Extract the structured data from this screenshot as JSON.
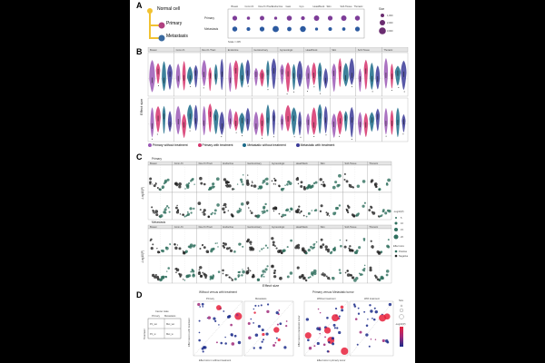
{
  "panels": {
    "a": "A",
    "b": "B",
    "c": "C",
    "d": "D"
  },
  "panel_a": {
    "nodes": [
      "Normal cell",
      "Primary",
      "Metastasis"
    ],
    "rows": [
      "Primary",
      "Metastasis"
    ],
    "columns": [
      "Breast",
      "Conn./O.",
      "Dev./O./Tract",
      "Endocrine",
      "Gast.",
      "Gyn.",
      "Head/Neck",
      "Skin",
      "Soft-Tissue",
      "Thoracic"
    ],
    "size_legend_title": "Size",
    "size_legend": [
      "1,000",
      "2,000",
      "3,000"
    ],
    "footnote": "Scale = 205"
  },
  "cancer_types": [
    "Breast",
    "Conn./O.",
    "Dev./O./Tract",
    "Endocrine",
    "Genitourinary",
    "Gynecologic",
    "Head/Neck",
    "Skin",
    "Soft-Tissue",
    "Thoracic"
  ],
  "panel_b": {
    "ylabel": "Effect size",
    "legend": [
      {
        "label": "Primary without treatment",
        "color": "#9b59b6"
      },
      {
        "label": "Primary with treatment",
        "color": "#d6336c"
      },
      {
        "label": "Metastatic without treatment",
        "color": "#1c6b8a"
      },
      {
        "label": "Metastatic with treatment",
        "color": "#3b3b98"
      }
    ]
  },
  "panel_c": {
    "group_labels": [
      "Primary",
      "Metastasis"
    ],
    "ylabel": "-Log10(P)",
    "xlabel": "Effect size",
    "legend_title": "-Log10(P)",
    "legend_values": [
      "5",
      "10",
      "15",
      "20"
    ],
    "legend2_title": "Effect size",
    "legend2_items": [
      "Positive",
      "Negative"
    ]
  },
  "panel_d": {
    "header_left": "Without versus with treatment",
    "header_right": "Primary versus Metastatic tumor",
    "sub_headers": [
      "Primary",
      "Metastasis",
      "Without treatment",
      "With treatment"
    ],
    "xlabel_left": "Effect size in without treatment",
    "xlabel_right": "Effect size in primary tumor",
    "ylabel_left": "Effect size in with treatment",
    "ylabel_right": "Effect size in metastatic tumor",
    "schema_title": "Cancer state",
    "schema_cols": [
      "Primary",
      "Metastasis"
    ],
    "schema_rows": [
      "Treatment",
      "Without",
      "With"
    ],
    "schema_cells": [
      "Pri_wo",
      "Met_wo",
      "Pri_w",
      "Met_w"
    ],
    "size_title": "Size",
    "color_title": "-Log10(P)"
  },
  "colors": {
    "primary_wo": "#9b59b6",
    "primary_w": "#d6336c",
    "met_wo": "#1c6b8a",
    "met_w": "#3b3b98",
    "volcano_point": "#2f6f5e"
  }
}
